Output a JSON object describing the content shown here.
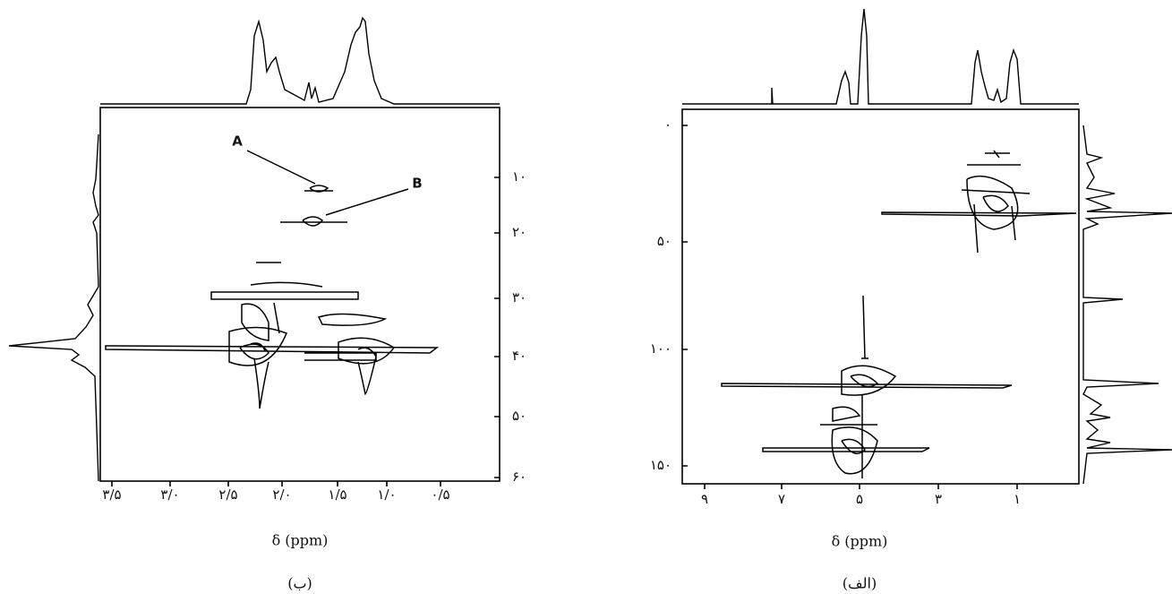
{
  "panels": [
    {
      "label": "(ب)",
      "x_label": "δ (ppm)",
      "x_ticks": [
        "۳/۵",
        "۳/۰",
        "۲/۵",
        "۲/۰",
        "۱/۵",
        "۱/۰",
        "۰/۵"
      ],
      "y_ticks": [
        "۱۰",
        "۲۰",
        "۳۰",
        "۴۰",
        "۵۰",
        "۶۰"
      ],
      "annotations": [
        "A",
        "B"
      ]
    },
    {
      "label": "(الف)",
      "x_label": "δ (ppm)",
      "x_ticks": [
        "۹",
        "۷",
        "۵",
        "۳",
        "۱"
      ],
      "y_ticks": [
        "۰",
        "۵۰",
        "۱۰۰",
        "۱۵۰"
      ]
    }
  ]
}
